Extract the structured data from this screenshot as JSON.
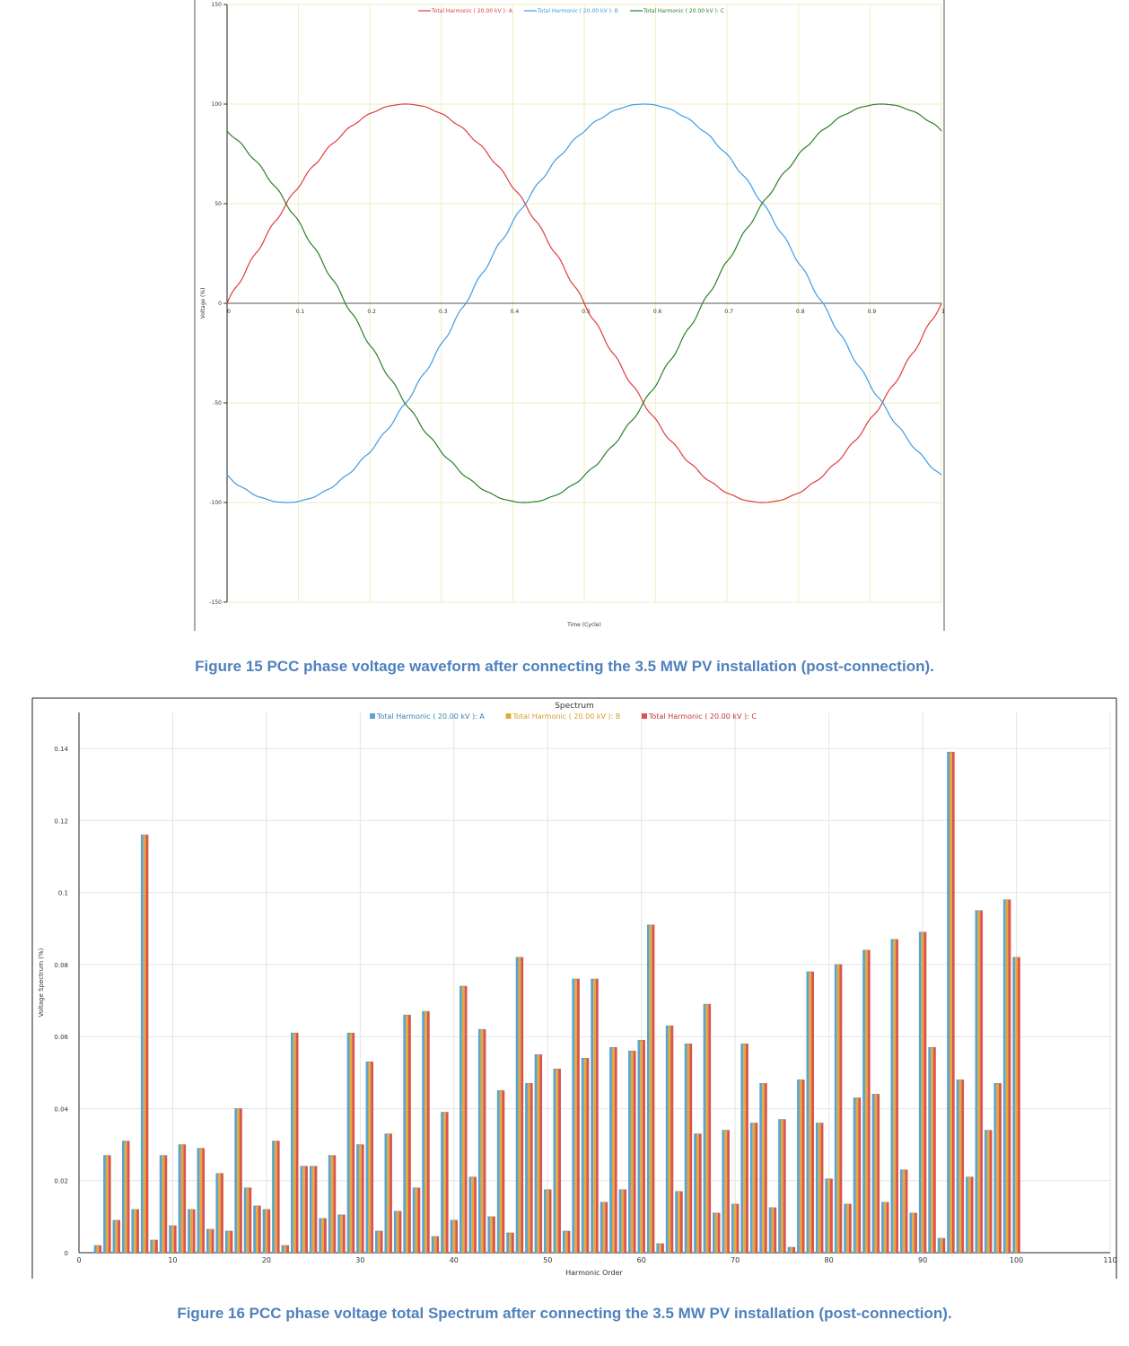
{
  "colors": {
    "phase_a": "#e03c3c",
    "phase_b": "#3c9be6",
    "phase_c": "#2b7f2b",
    "bar_a": "#5ba3d0",
    "bar_b": "#e5a93a",
    "bar_c": "#d9534f",
    "caption": "#4f81bd",
    "grid_wave": "#eeeec0",
    "grid_spec": "#e4e4e4"
  },
  "captions": {
    "figure15": "Figure 15 PCC phase voltage waveform after connecting the 3.5 MW PV installation (post-connection).",
    "figure16": "Figure 16 PCC phase voltage total Spectrum after connecting the 3.5 MW PV installation (post-connection)."
  },
  "chart_data": [
    {
      "type": "line",
      "title": "",
      "xlabel": "Time (Cycle)",
      "ylabel": "Voltage (%)",
      "xlim": [
        0,
        1
      ],
      "ylim": [
        -150,
        150
      ],
      "xticks": [
        "0",
        "0.1",
        "0.2",
        "0.3",
        "0.4",
        "0.5",
        "0.6",
        "0.7",
        "0.8",
        "0.9",
        "1"
      ],
      "yticks": [
        "150",
        "100",
        "50",
        "0",
        "-50",
        "-100",
        "-150"
      ],
      "legend_position": "top",
      "grid": true,
      "series": [
        {
          "name": "Total Harmonic ( 20.00 kV ): A",
          "amplitude": 100,
          "phase_deg": 0
        },
        {
          "name": "Total Harmonic ( 20.00 kV ): B",
          "amplitude": 100,
          "phase_deg": -120
        },
        {
          "name": "Total Harmonic ( 20.00 kV ): C",
          "amplitude": 100,
          "phase_deg": 120
        }
      ]
    },
    {
      "type": "bar",
      "title": "Spectrum",
      "xlabel": "Harmonic Order",
      "ylabel": "Voltage Spectrum (%)",
      "xlim": [
        0,
        110
      ],
      "ylim": [
        0,
        0.15
      ],
      "xticks": [
        "0",
        "10",
        "20",
        "30",
        "40",
        "50",
        "60",
        "70",
        "80",
        "90",
        "100",
        "110"
      ],
      "yticks": [
        "0",
        "0.02",
        "0.04",
        "0.06",
        "0.08",
        "0.1",
        "0.12",
        "0.14"
      ],
      "legend_position": "top",
      "grid": true,
      "series_names": [
        "Total Harmonic ( 20.00 kV ): A",
        "Total Harmonic ( 20.00 kV ): B",
        "Total Harmonic ( 20.00 kV ): C"
      ],
      "x": [
        2,
        3,
        4,
        5,
        6,
        7,
        8,
        9,
        10,
        11,
        12,
        13,
        14,
        15,
        16,
        17,
        18,
        19,
        20,
        21,
        22,
        23,
        24,
        25,
        26,
        27,
        28,
        29,
        30,
        31,
        32,
        33,
        34,
        35,
        36,
        37,
        38,
        39,
        40,
        41,
        42,
        43,
        44,
        45,
        46,
        47,
        48,
        49,
        50,
        51,
        52,
        53,
        54,
        55,
        56,
        57,
        58,
        59,
        60,
        61,
        62,
        63,
        64,
        65,
        66,
        67,
        68,
        69,
        70,
        71,
        72,
        73,
        74,
        75,
        76,
        77,
        78,
        79,
        80,
        81,
        82,
        83,
        84,
        85,
        86,
        87,
        88,
        89,
        90,
        91,
        92,
        93,
        94,
        95,
        96,
        97,
        98,
        99,
        100
      ],
      "values": [
        0.002,
        0.027,
        0.009,
        0.031,
        0.012,
        0.116,
        0.0035,
        0.027,
        0.0075,
        0.03,
        0.012,
        0.029,
        0.0065,
        0.022,
        0.006,
        0.04,
        0.018,
        0.013,
        0.012,
        0.031,
        0.002,
        0.061,
        0.024,
        0.024,
        0.0095,
        0.027,
        0.0105,
        0.061,
        0.03,
        0.053,
        0.006,
        0.033,
        0.0115,
        0.066,
        0.018,
        0.067,
        0.0045,
        0.039,
        0.009,
        0.074,
        0.021,
        0.062,
        0.01,
        0.045,
        0.0055,
        0.082,
        0.047,
        0.055,
        0.0175,
        0.051,
        0.006,
        0.076,
        0.054,
        0.076,
        0.014,
        0.057,
        0.0175,
        0.056,
        0.059,
        0.091,
        0.0025,
        0.063,
        0.017,
        0.058,
        0.033,
        0.069,
        0.011,
        0.034,
        0.0135,
        0.058,
        0.036,
        0.047,
        0.0125,
        0.037,
        0.0015,
        0.048,
        0.078,
        0.036,
        0.0205,
        0.08,
        0.0135,
        0.043,
        0.084,
        0.044,
        0.014,
        0.087,
        0.023,
        0.011,
        0.089,
        0.057,
        0.004,
        0.139,
        0.048,
        0.021,
        0.095,
        0.034,
        0.047,
        0.098,
        0.082
      ]
    }
  ]
}
